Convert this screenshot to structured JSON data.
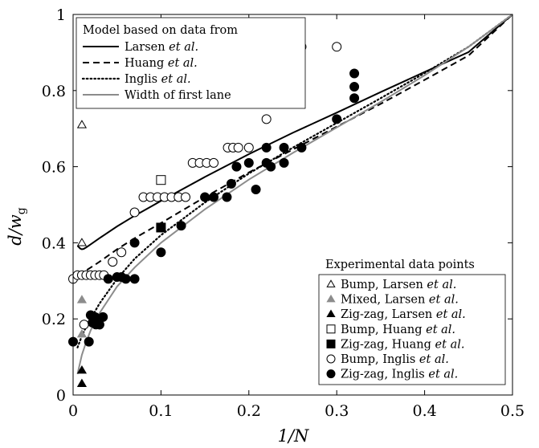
{
  "chart_data": {
    "type": "line",
    "xlabel": "1/N",
    "ylabel": "d/w_g",
    "xlim": [
      0,
      0.5
    ],
    "ylim": [
      0,
      1
    ],
    "x_ticks": [
      "0",
      "0.1",
      "0.2",
      "0.3",
      "0.4",
      "0.5"
    ],
    "y_ticks": [
      "0",
      "0.2",
      "0.4",
      "0.6",
      "0.8",
      "1"
    ],
    "legend_model": {
      "title": "Model based on data from",
      "placement": "top-left",
      "entries": [
        {
          "label": "Larsen",
          "etal": "et al.",
          "style": "solid",
          "color": "#000000"
        },
        {
          "label": "Huang",
          "etal": "et al.",
          "style": "dashed",
          "color": "#000000"
        },
        {
          "label": "Inglis",
          "etal": "et al.",
          "style": "dotted",
          "color": "#000000"
        },
        {
          "label": "Width of first lane",
          "etal": "",
          "style": "solid",
          "color": "#8c8c8c"
        }
      ]
    },
    "legend_experimental": {
      "title": "Experimental data points",
      "placement": "bottom-right",
      "entries": [
        {
          "label": "Bump, Larsen",
          "etal": "et al.",
          "marker": "triangle-open",
          "color": "#000000"
        },
        {
          "label": "Mixed, Larsen",
          "etal": "et al.",
          "marker": "triangle-filled",
          "color": "#8c8c8c"
        },
        {
          "label": "Zig-zag, Larsen",
          "etal": "et al.",
          "marker": "triangle-filled",
          "color": "#000000"
        },
        {
          "label": "Bump, Huang",
          "etal": "et al.",
          "marker": "square-open",
          "color": "#000000"
        },
        {
          "label": "Zig-zag, Huang",
          "etal": "et al.",
          "marker": "square-filled",
          "color": "#000000"
        },
        {
          "label": "Bump, Inglis",
          "etal": "et al.",
          "marker": "circle-open",
          "color": "#000000"
        },
        {
          "label": "Zig-zag, Inglis",
          "etal": "et al.",
          "marker": "circle-filled",
          "color": "#000000"
        }
      ]
    },
    "lines": [
      {
        "name": "Larsen et al.",
        "style": "solid",
        "color": "#000000",
        "x": [
          0.005,
          0.008,
          0.01,
          0.012,
          0.015,
          0.02,
          0.03,
          0.05,
          0.07,
          0.1,
          0.15,
          0.2,
          0.25,
          0.3,
          0.35,
          0.4,
          0.45,
          0.5
        ],
        "y": [
          0.392,
          0.385,
          0.383,
          0.384,
          0.388,
          0.396,
          0.412,
          0.443,
          0.471,
          0.51,
          0.573,
          0.633,
          0.689,
          0.742,
          0.796,
          0.849,
          0.901,
          1.0
        ]
      },
      {
        "name": "Huang et al.",
        "style": "dashed",
        "color": "#000000",
        "x": [
          0.005,
          0.01,
          0.02,
          0.03,
          0.05,
          0.07,
          0.1,
          0.15,
          0.2,
          0.25,
          0.3,
          0.35,
          0.4,
          0.45,
          0.5
        ],
        "y": [
          0.318,
          0.32,
          0.335,
          0.35,
          0.383,
          0.412,
          0.452,
          0.52,
          0.585,
          0.645,
          0.705,
          0.765,
          0.828,
          0.892,
          1.0
        ]
      },
      {
        "name": "Inglis et al.",
        "style": "dotted",
        "color": "#000000",
        "x": [
          0.005,
          0.01,
          0.015,
          0.02,
          0.03,
          0.05,
          0.07,
          0.1,
          0.15,
          0.2,
          0.25,
          0.3,
          0.35,
          0.4,
          0.45,
          0.5
        ],
        "y": [
          0.125,
          0.155,
          0.18,
          0.2,
          0.24,
          0.305,
          0.358,
          0.42,
          0.506,
          0.582,
          0.65,
          0.715,
          0.78,
          0.846,
          0.915,
          1.0
        ]
      },
      {
        "name": "Width of first lane",
        "style": "solid",
        "color": "#8c8c8c",
        "x": [
          0.005,
          0.01,
          0.015,
          0.02,
          0.03,
          0.04,
          0.05,
          0.07,
          0.1,
          0.15,
          0.2,
          0.25,
          0.3,
          0.35,
          0.4,
          0.45,
          0.5
        ],
        "y": [
          0.055,
          0.105,
          0.14,
          0.17,
          0.215,
          0.25,
          0.285,
          0.335,
          0.4,
          0.488,
          0.566,
          0.636,
          0.703,
          0.77,
          0.84,
          0.915,
          1.0
        ]
      }
    ],
    "points": [
      {
        "series": "Bump, Larsen et al.",
        "marker": "triangle-open",
        "color": "#000000",
        "x": [
          0.01,
          0.01
        ],
        "y": [
          0.71,
          0.4
        ]
      },
      {
        "series": "Mixed, Larsen et al.",
        "marker": "triangle-filled",
        "color": "#8c8c8c",
        "x": [
          0.01,
          0.01
        ],
        "y": [
          0.25,
          0.16
        ]
      },
      {
        "series": "Zig-zag, Larsen et al.",
        "marker": "triangle-filled",
        "color": "#000000",
        "x": [
          0.01,
          0.01
        ],
        "y": [
          0.065,
          0.03
        ]
      },
      {
        "series": "Bump, Huang et al.",
        "marker": "square-open",
        "color": "#000000",
        "x": [
          0.1
        ],
        "y": [
          0.565
        ]
      },
      {
        "series": "Zig-zag, Huang et al.",
        "marker": "square-filled",
        "color": "#000000",
        "x": [
          0.1
        ],
        "y": [
          0.44
        ]
      },
      {
        "series": "Bump, Inglis et al.",
        "marker": "circle-open",
        "color": "#000000",
        "x": [
          0.0,
          0.005,
          0.01,
          0.015,
          0.02,
          0.025,
          0.03,
          0.035,
          0.0125,
          0.045,
          0.055,
          0.07,
          0.08,
          0.088,
          0.096,
          0.104,
          0.112,
          0.12,
          0.128,
          0.136,
          0.144,
          0.152,
          0.16,
          0.176,
          0.182,
          0.188,
          0.2,
          0.22,
          0.24,
          0.26,
          0.3
        ],
        "y": [
          0.305,
          0.315,
          0.315,
          0.315,
          0.315,
          0.315,
          0.315,
          0.315,
          0.185,
          0.35,
          0.375,
          0.48,
          0.52,
          0.52,
          0.52,
          0.52,
          0.52,
          0.52,
          0.52,
          0.61,
          0.61,
          0.61,
          0.61,
          0.65,
          0.65,
          0.65,
          0.65,
          0.725,
          0.91,
          0.915,
          0.915
        ]
      },
      {
        "series": "Zig-zag, Inglis et al.",
        "marker": "circle-filled",
        "color": "#000000",
        "x": [
          0.0,
          0.018,
          0.022,
          0.026,
          0.03,
          0.034,
          0.02,
          0.025,
          0.03,
          0.04,
          0.05,
          0.055,
          0.06,
          0.07,
          0.07,
          0.1,
          0.123,
          0.15,
          0.16,
          0.175,
          0.18,
          0.186,
          0.2,
          0.208,
          0.22,
          0.22,
          0.225,
          0.24,
          0.24,
          0.26,
          0.3,
          0.32,
          0.32,
          0.32
        ],
        "y": [
          0.14,
          0.14,
          0.19,
          0.185,
          0.185,
          0.205,
          0.21,
          0.205,
          0.185,
          0.305,
          0.31,
          0.31,
          0.305,
          0.305,
          0.4,
          0.375,
          0.445,
          0.52,
          0.52,
          0.52,
          0.555,
          0.6,
          0.61,
          0.54,
          0.65,
          0.61,
          0.6,
          0.65,
          0.61,
          0.65,
          0.725,
          0.78,
          0.81,
          0.845
        ]
      }
    ]
  }
}
